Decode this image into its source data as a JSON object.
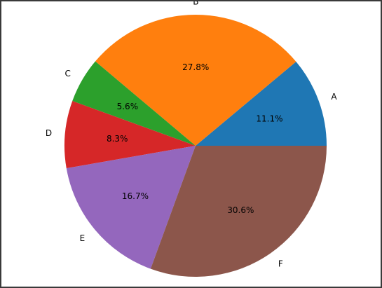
{
  "chart_data": {
    "type": "pie",
    "title": "",
    "start_angle_deg": 0,
    "direction": "counterclockwise",
    "slices": [
      {
        "label": "A",
        "value": 11.1,
        "pct_label": "11.1%",
        "color": "#1f77b4"
      },
      {
        "label": "B",
        "value": 27.8,
        "pct_label": "27.8%",
        "color": "#ff7f0e"
      },
      {
        "label": "C",
        "value": 5.6,
        "pct_label": "5.6%",
        "color": "#2ca02c"
      },
      {
        "label": "D",
        "value": 8.3,
        "pct_label": "8.3%",
        "color": "#d62728"
      },
      {
        "label": "E",
        "value": 16.7,
        "pct_label": "16.7%",
        "color": "#9467bd"
      },
      {
        "label": "F",
        "value": 30.6,
        "pct_label": "30.6%",
        "color": "#8c564b"
      }
    ]
  }
}
